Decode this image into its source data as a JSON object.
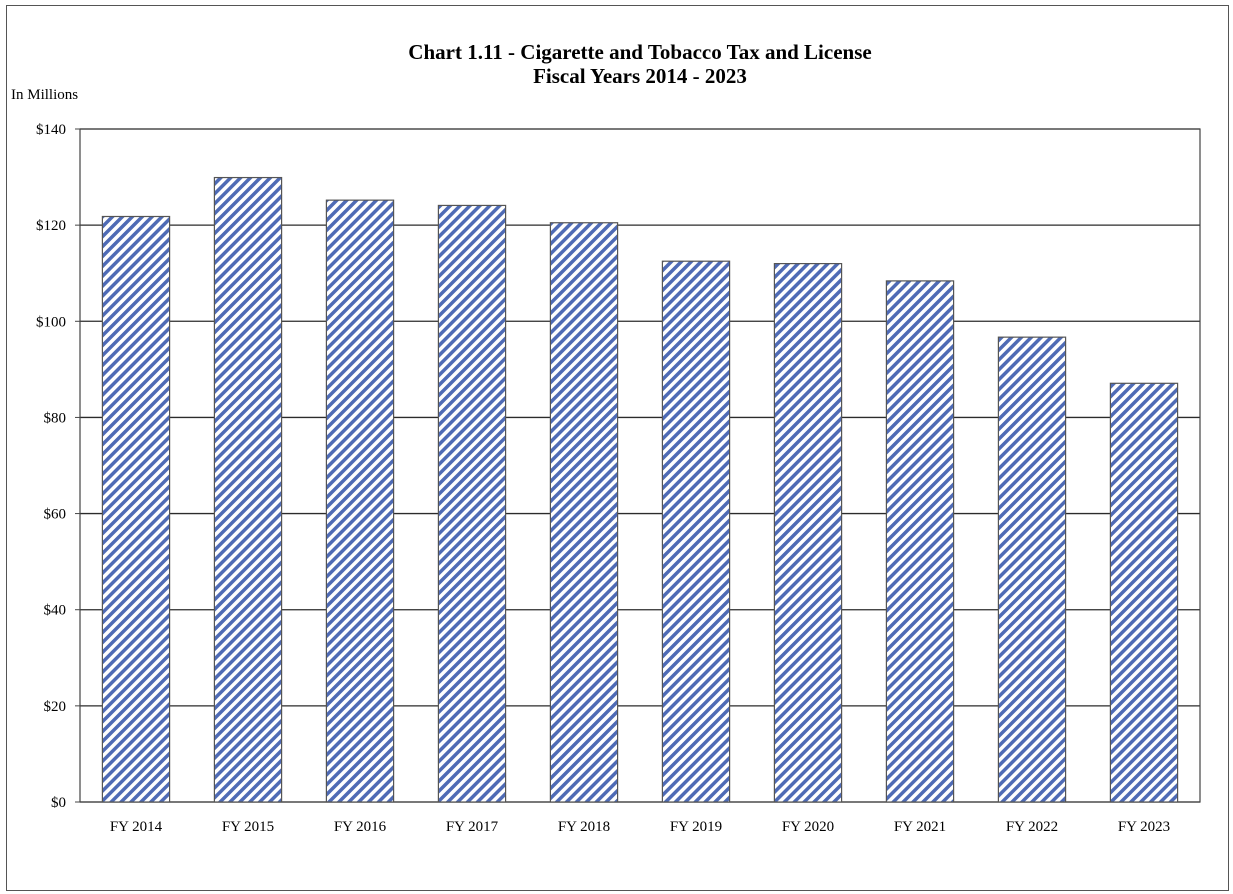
{
  "chart_data": {
    "type": "bar",
    "title": "Chart 1.11 - Cigarette and Tobacco Tax and License",
    "subtitle": "Fiscal Years 2014 - 2023",
    "ylabel": "In Millions",
    "xlabel": "",
    "categories": [
      "FY 2014",
      "FY 2015",
      "FY 2016",
      "FY 2017",
      "FY 2018",
      "FY 2019",
      "FY 2020",
      "FY 2021",
      "FY 2022",
      "FY 2023"
    ],
    "values": [
      121.8,
      129.9,
      125.2,
      124.1,
      120.5,
      112.5,
      112.0,
      108.4,
      96.7,
      87.1
    ],
    "ylim": [
      0,
      140
    ],
    "yticks": [
      0,
      20,
      40,
      60,
      80,
      100,
      120,
      140
    ],
    "ytick_labels": [
      "$0",
      "$20",
      "$40",
      "$60",
      "$80",
      "$100",
      "$120",
      "$140"
    ],
    "grid": true,
    "legend": "none",
    "bar_fill_pattern": "diagonal-hatch",
    "bar_hatch_color": "#4f6bb5",
    "bar_outline_color": "#555555",
    "gridline_color": "#2b2b2b"
  }
}
